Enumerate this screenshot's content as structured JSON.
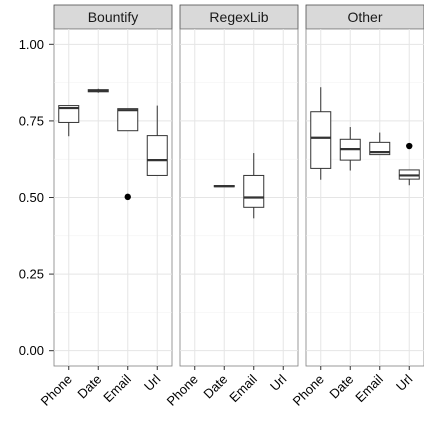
{
  "chart_data": {
    "type": "boxplot",
    "title": "",
    "xlabel": "",
    "ylabel": "",
    "ylim": [
      -0.05,
      1.05
    ],
    "yticks": [
      {
        "value": 0.0,
        "label": "0.00"
      },
      {
        "value": 0.25,
        "label": "0.25"
      },
      {
        "value": 0.5,
        "label": "0.50"
      },
      {
        "value": 0.75,
        "label": "0.75"
      },
      {
        "value": 1.0,
        "label": "1.00"
      }
    ],
    "categories": [
      "Phone",
      "Date",
      "Email",
      "Url"
    ],
    "grid": true,
    "facets": [
      {
        "name": "Bountify",
        "boxes": [
          {
            "category": "Phone",
            "min": 0.7,
            "q1": 0.745,
            "median": 0.792,
            "q3": 0.8,
            "max": 0.8,
            "outliers": []
          },
          {
            "category": "Date",
            "min": 0.842,
            "q1": 0.845,
            "median": 0.848,
            "q3": 0.852,
            "max": 0.855,
            "outliers": []
          },
          {
            "category": "Email",
            "min": 0.718,
            "q1": 0.718,
            "median": 0.785,
            "q3": 0.79,
            "max": 0.79,
            "outliers": [
              0.502
            ]
          },
          {
            "category": "Url",
            "min": 0.572,
            "q1": 0.572,
            "median": 0.622,
            "q3": 0.702,
            "max": 0.8,
            "outliers": []
          }
        ]
      },
      {
        "name": "RegexLib",
        "boxes": [
          {
            "category": "Date",
            "min": 0.535,
            "q1": 0.535,
            "median": 0.537,
            "q3": 0.539,
            "max": 0.539,
            "outliers": []
          },
          {
            "category": "Email",
            "min": 0.432,
            "q1": 0.468,
            "median": 0.5,
            "q3": 0.572,
            "max": 0.645,
            "outliers": []
          }
        ]
      },
      {
        "name": "Other",
        "boxes": [
          {
            "category": "Phone",
            "min": 0.558,
            "q1": 0.595,
            "median": 0.695,
            "q3": 0.78,
            "max": 0.86,
            "outliers": []
          },
          {
            "category": "Date",
            "min": 0.588,
            "q1": 0.622,
            "median": 0.658,
            "q3": 0.69,
            "max": 0.73,
            "outliers": []
          },
          {
            "category": "Email",
            "min": 0.64,
            "q1": 0.64,
            "median": 0.648,
            "q3": 0.68,
            "max": 0.712,
            "outliers": []
          },
          {
            "category": "Url",
            "min": 0.54,
            "q1": 0.56,
            "median": 0.572,
            "q3": 0.59,
            "max": 0.59,
            "outliers": [
              0.668
            ]
          }
        ]
      }
    ]
  }
}
